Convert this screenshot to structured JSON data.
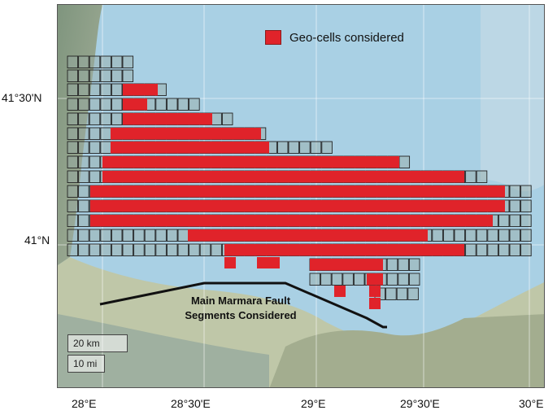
{
  "legend": {
    "label": "Geo-cells considered",
    "color": "#e0232a"
  },
  "fault": {
    "label_line1": "Main Marmara Fault",
    "label_line2": "Segments Considered"
  },
  "scalebar": {
    "km": "20 km",
    "mi": "10 mi"
  },
  "lat_ticks": [
    "41°30'N",
    "41°N"
  ],
  "lon_ticks": [
    "28°E",
    "28°30'E",
    "29°E",
    "29°30'E",
    "30°E"
  ],
  "colors": {
    "sea": "#a9d0e4",
    "land": "#93a592",
    "cell_fill": "#e0232a",
    "grid": "#ffffff"
  }
}
